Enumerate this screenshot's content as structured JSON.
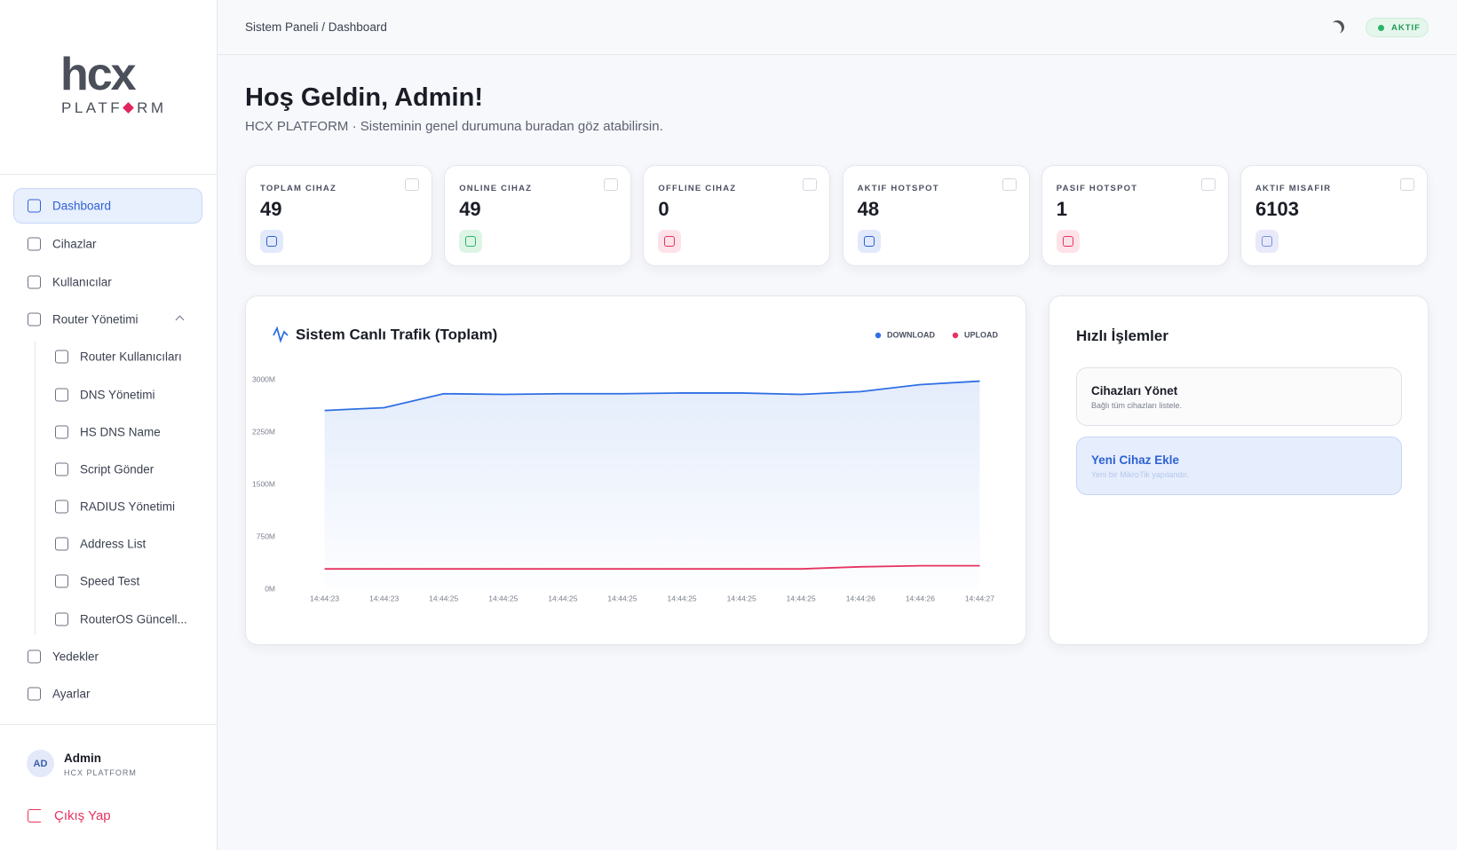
{
  "header": {
    "breadcrumb": "Sistem Paneli / Dashboard",
    "status": "AKTIF"
  },
  "sidebar": {
    "logo": {
      "mark": "hcx",
      "word_start": "PLATF",
      "word_end": "RM"
    },
    "nav_main": [
      "Dashboard",
      "Cihazlar",
      "Kullanıcılar",
      "Router Yönetimi"
    ],
    "nav_router": [
      "Router Kullanıcıları",
      "DNS Yönetimi",
      "HS DNS Name",
      "Script Gönder",
      "RADIUS Yönetimi",
      "Address List",
      "Speed Test",
      "RouterOS Güncell..."
    ],
    "nav_bottom": [
      "Yedekler",
      "Ayarlar"
    ],
    "user": {
      "initials": "AD",
      "name": "Admin",
      "org": "HCX PLATFORM"
    },
    "logout": "Çıkış Yap"
  },
  "welcome": {
    "title": "Hoş Geldin, Admin!",
    "subtitle": "HCX PLATFORM · Sisteminin genel durumuna buradan göz atabilirsin."
  },
  "stats": [
    {
      "label": "TOPLAM CIHAZ",
      "value": "49"
    },
    {
      "label": "ONLINE CIHAZ",
      "value": "49"
    },
    {
      "label": "OFFLINE CIHAZ",
      "value": "0"
    },
    {
      "label": "AKTIF HOTSPOT",
      "value": "48"
    },
    {
      "label": "PASIF HOTSPOT",
      "value": "1"
    },
    {
      "label": "AKTIF MISAFIR",
      "value": "6103"
    }
  ],
  "chart_data": {
    "type": "line",
    "title": "Sistem Canlı Trafik (Toplam)",
    "categories": [
      "14:44:23",
      "14:44:23",
      "14:44:25",
      "14:44:25",
      "14:44:25",
      "14:44:25",
      "14:44:25",
      "14:44:25",
      "14:44:25",
      "14:44:26",
      "14:44:26",
      "14:44:27"
    ],
    "series": [
      {
        "name": "DOWNLOAD",
        "color": "#2f6fe4",
        "values": [
          2560,
          2600,
          2800,
          2790,
          2800,
          2800,
          2810,
          2810,
          2790,
          2830,
          2930,
          2980
        ]
      },
      {
        "name": "UPLOAD",
        "color": "#e6335f",
        "values": [
          290,
          290,
          290,
          290,
          290,
          290,
          290,
          290,
          290,
          320,
          335,
          335
        ]
      }
    ],
    "ylim": [
      0,
      3000
    ],
    "yticks": [
      {
        "value": 0,
        "label": "0M"
      },
      {
        "value": 750,
        "label": "750M"
      },
      {
        "value": 1500,
        "label": "1500M"
      },
      {
        "value": 2250,
        "label": "2250M"
      },
      {
        "value": 3000,
        "label": "3000M"
      }
    ],
    "grid": false,
    "legend": "top-right"
  },
  "quick": {
    "title": "Hızlı İşlemler",
    "actions": [
      {
        "title": "Cihazları Yönet",
        "desc": "Bağlı tüm cihazları listele."
      },
      {
        "title": "Yeni Cihaz Ekle",
        "desc": "Yeni bir MikroTik yapılandır."
      }
    ]
  }
}
